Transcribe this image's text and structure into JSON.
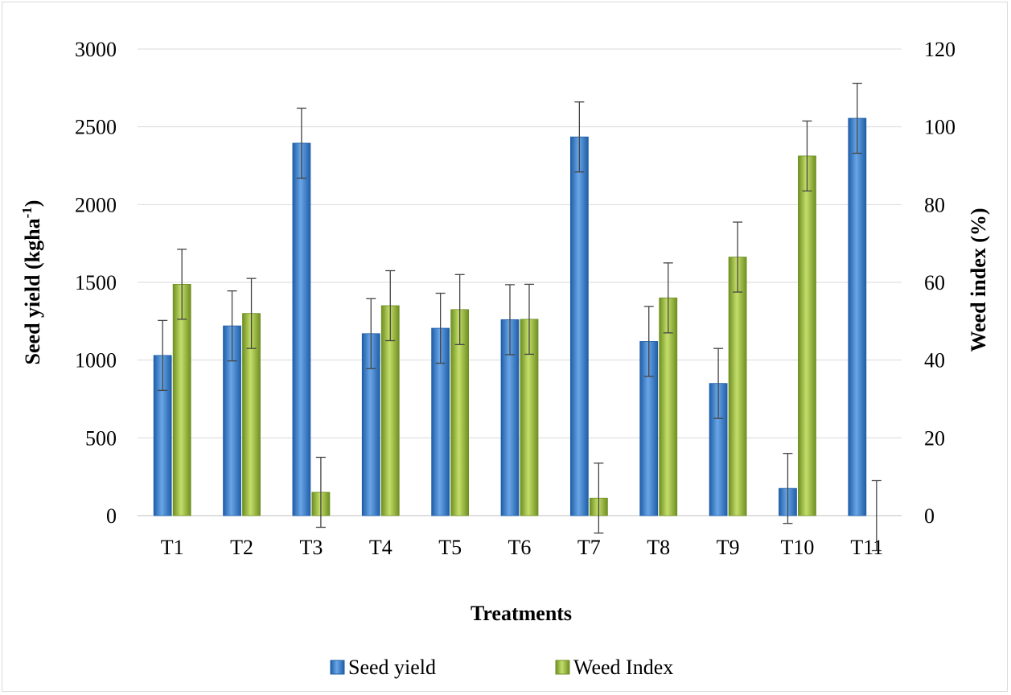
{
  "chart_data": {
    "type": "bar",
    "categories": [
      "T1",
      "T2",
      "T3",
      "T4",
      "T5",
      "T6",
      "T7",
      "T8",
      "T9",
      "T10",
      "T11"
    ],
    "series": [
      {
        "name": "Seed yield",
        "axis": "left",
        "values": [
          1030,
          1220,
          2395,
          1170,
          1205,
          1260,
          2435,
          1120,
          850,
          175,
          2555
        ],
        "error": 225,
        "color": "#3d7fc8"
      },
      {
        "name": "Weed Index",
        "axis": "right",
        "values": [
          59.5,
          52,
          6,
          54,
          53,
          50.5,
          4.5,
          56,
          66.5,
          92.5,
          0
        ],
        "error": 9,
        "color": "#94b83a"
      }
    ],
    "xlabel": "Treatments",
    "ylabel": "Seed yield (kgha",
    "ylabel_superscript": "-1",
    "ylabel_suffix": ")",
    "y2label": "Weed index (%)",
    "ylim": [
      0,
      3000
    ],
    "y2lim": [
      0,
      120
    ],
    "yticks": [
      "0",
      "500",
      "1000",
      "1500",
      "2000",
      "2500",
      "3000"
    ],
    "y2ticks": [
      "0",
      "20",
      "40",
      "60",
      "80",
      "100",
      "120"
    ],
    "grid": true,
    "legend_position": "bottom"
  }
}
